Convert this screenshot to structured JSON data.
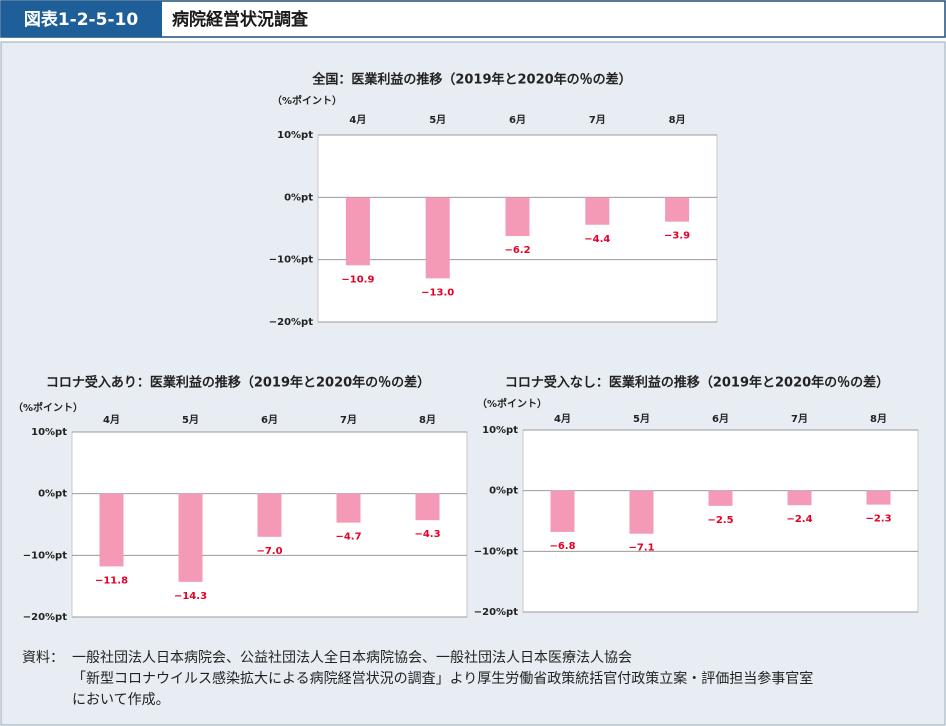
{
  "header": {
    "figure_number": "図表1-2-5-10",
    "title": "病院経営状況調査"
  },
  "chart_data": [
    {
      "type": "bar",
      "title": "全国：医業利益の推移（2019年と2020年の％の差）",
      "y_label": "（%ポイント）",
      "categories": [
        "4月",
        "5月",
        "6月",
        "7月",
        "8月"
      ],
      "values": [
        -10.9,
        -13.0,
        -6.2,
        -4.4,
        -3.9
      ],
      "value_labels": [
        "−10.9",
        "−13.0",
        "−6.2",
        "−4.4",
        "−3.9"
      ],
      "color": "#f49ab7",
      "label_color": "#e60026",
      "ylim": [
        -20,
        10
      ],
      "yticks": [
        {
          "value": 10,
          "label": "10%pt"
        },
        {
          "value": 0,
          "label": "0%pt"
        },
        {
          "value": -10,
          "label": "−10%pt"
        },
        {
          "value": -20,
          "label": "−20%pt"
        }
      ],
      "grid": true
    },
    {
      "type": "bar",
      "title": "コロナ受入あり：医業利益の推移（2019年と2020年の％の差）",
      "y_label": "（%ポイント）",
      "categories": [
        "4月",
        "5月",
        "6月",
        "7月",
        "8月"
      ],
      "values": [
        -11.8,
        -14.3,
        -7.0,
        -4.7,
        -4.3
      ],
      "value_labels": [
        "−11.8",
        "−14.3",
        "−7.0",
        "−4.7",
        "−4.3"
      ],
      "color": "#f49ab7",
      "label_color": "#e60026",
      "ylim": [
        -20,
        10
      ],
      "yticks": [
        {
          "value": 10,
          "label": "10%pt"
        },
        {
          "value": 0,
          "label": "0%pt"
        },
        {
          "value": -10,
          "label": "−10%pt"
        },
        {
          "value": -20,
          "label": "−20%pt"
        }
      ],
      "grid": true
    },
    {
      "type": "bar",
      "title": "コロナ受入なし：医業利益の推移（2019年と2020年の％の差）",
      "y_label": "（%ポイント）",
      "categories": [
        "4月",
        "5月",
        "6月",
        "7月",
        "8月"
      ],
      "values": [
        -6.8,
        -7.1,
        -2.5,
        -2.4,
        -2.3
      ],
      "value_labels": [
        "−6.8",
        "−7.1",
        "−2.5",
        "−2.4",
        "−2.3"
      ],
      "color": "#f49ab7",
      "label_color": "#e60026",
      "ylim": [
        -20,
        10
      ],
      "yticks": [
        {
          "value": 10,
          "label": "10%pt"
        },
        {
          "value": 0,
          "label": "0%pt"
        },
        {
          "value": -10,
          "label": "−10%pt"
        },
        {
          "value": -20,
          "label": "−20%pt"
        }
      ],
      "grid": true
    }
  ],
  "source": {
    "label": "資料：",
    "lines": [
      "一般社団法人日本病院会、公益社団法人全日本病院協会、一般社団法人日本医療法人協会",
      "「新型コロナウイルス感染拡大による病院経営状況の調査」より厚生労働省政策統括官付政策立案・評価担当参事官室",
      "において作成。"
    ]
  }
}
